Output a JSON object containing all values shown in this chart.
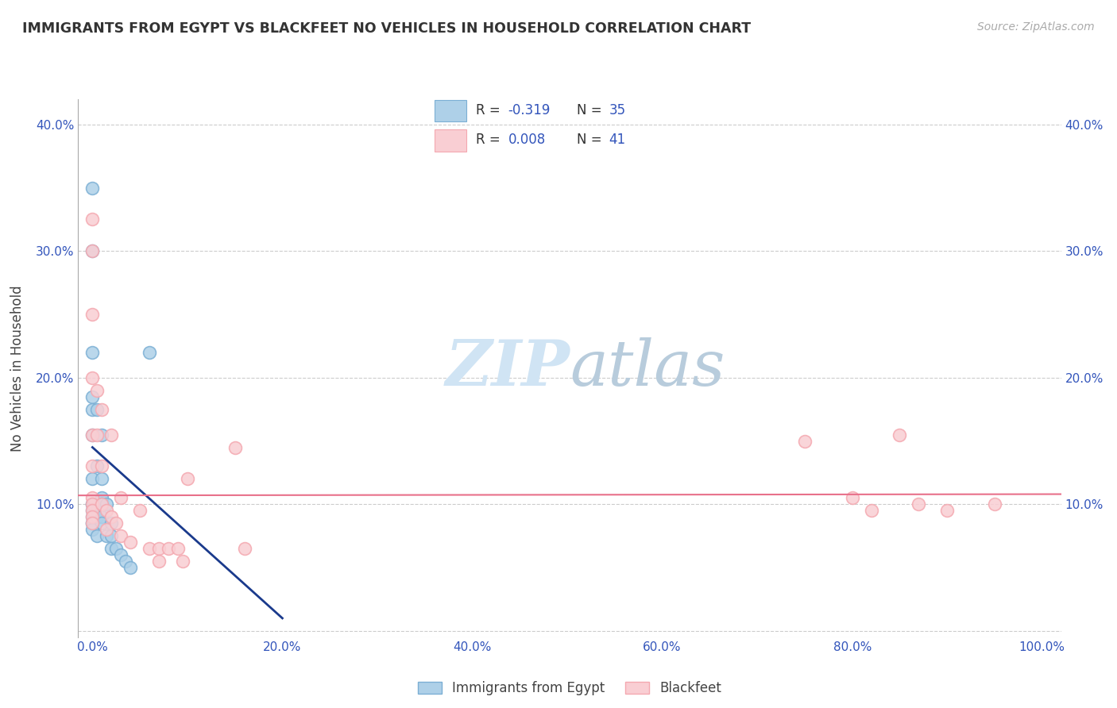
{
  "title": "IMMIGRANTS FROM EGYPT VS BLACKFEET NO VEHICLES IN HOUSEHOLD CORRELATION CHART",
  "source": "Source: ZipAtlas.com",
  "ylabel": "No Vehicles in Household",
  "x_ticks": [
    0,
    20,
    40,
    60,
    80,
    100
  ],
  "x_tick_labels": [
    "0.0%",
    "20.0%",
    "40.0%",
    "60.0%",
    "80.0%",
    "100.0%"
  ],
  "y_ticks": [
    0,
    10,
    20,
    30,
    40
  ],
  "y_tick_labels": [
    "",
    "10.0%",
    "20.0%",
    "30.0%",
    "40.0%"
  ],
  "xlim": [
    -1.5,
    102
  ],
  "ylim": [
    -0.5,
    42
  ],
  "legend_line1": "R = -0.319   N = 35",
  "legend_line2": "R = 0.008   N = 41",
  "legend_label1": "Immigrants from Egypt",
  "legend_label2": "Blackfeet",
  "blue_color": "#7BAFD4",
  "pink_color": "#F4A8B0",
  "blue_fill": "#AED0E8",
  "pink_fill": "#F9CED3",
  "trend_blue": "#1A3A8C",
  "trend_pink": "#E8708A",
  "watermark_color": "#D0E4F4",
  "blue_points_x": [
    0,
    0,
    0,
    0,
    0,
    0,
    0,
    0,
    0,
    0,
    0,
    0,
    0,
    0,
    0.5,
    0.5,
    0.5,
    0.5,
    0.5,
    1.0,
    1.0,
    1.0,
    1.0,
    1.0,
    1.0,
    1.5,
    1.5,
    2.0,
    2.0,
    2.0,
    2.5,
    3.0,
    3.5,
    4.0,
    6.0
  ],
  "blue_points_y": [
    35,
    30,
    22,
    18.5,
    17.5,
    15.5,
    12,
    10,
    10,
    9.5,
    9.0,
    8.5,
    8.5,
    8.0,
    17.5,
    13,
    9.5,
    9.0,
    7.5,
    15.5,
    12,
    10.5,
    10,
    9.0,
    8.5,
    10,
    7.5,
    8.5,
    7.5,
    6.5,
    6.5,
    6.0,
    5.5,
    5.0,
    22
  ],
  "pink_points_x": [
    0,
    0,
    0,
    0,
    0,
    0,
    0,
    0,
    0,
    0,
    0,
    0.5,
    0.5,
    1.0,
    1.0,
    1.0,
    1.5,
    1.5,
    2.0,
    2.0,
    2.5,
    3.0,
    3.0,
    4.0,
    5.0,
    6.0,
    7.0,
    7.0,
    8.0,
    9.0,
    9.5,
    10.0,
    15.0,
    16.0,
    75,
    80,
    82,
    85,
    87,
    90,
    95
  ],
  "pink_points_y": [
    32.5,
    30,
    25,
    20,
    15.5,
    13,
    10.5,
    10,
    9.5,
    9.0,
    8.5,
    19,
    15.5,
    17.5,
    13,
    10,
    9.5,
    8.0,
    15.5,
    9.0,
    8.5,
    10.5,
    7.5,
    7.0,
    9.5,
    6.5,
    6.5,
    5.5,
    6.5,
    6.5,
    5.5,
    12,
    14.5,
    6.5,
    15,
    10.5,
    9.5,
    15.5,
    10,
    9.5,
    10
  ],
  "blue_trend_x": [
    0,
    20
  ],
  "blue_trend_y": [
    14.5,
    1.0
  ],
  "pink_trend_x": [
    -1.5,
    102
  ],
  "pink_trend_y": [
    10.7,
    10.8
  ]
}
